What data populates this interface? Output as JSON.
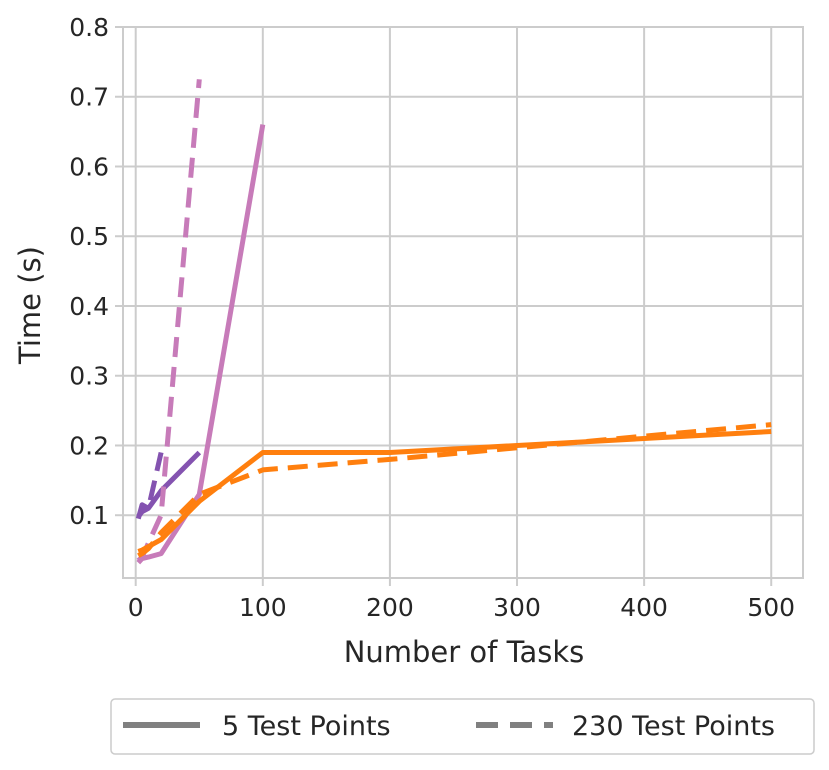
{
  "chart_data": {
    "type": "line",
    "xlabel": "Number of Tasks",
    "ylabel": "Time (s)",
    "xlim": [
      -10,
      525
    ],
    "ylim": [
      0.01,
      0.8
    ],
    "xticks": [
      0,
      100,
      200,
      300,
      400,
      500
    ],
    "xtick_labels": [
      "0",
      "100",
      "200",
      "300",
      "400",
      "500"
    ],
    "yticks": [
      0.1,
      0.2,
      0.3,
      0.4,
      0.5,
      0.6,
      0.7,
      0.8
    ],
    "ytick_labels": [
      "0.1",
      "0.2",
      "0.3",
      "0.4",
      "0.5",
      "0.6",
      "0.7",
      "0.8"
    ],
    "grid": true,
    "legend_position": "bottom (below plot)",
    "legend": [
      {
        "label": "5 Test Points",
        "style": "solid"
      },
      {
        "label": "230 Test Points",
        "style": "dashed"
      }
    ],
    "series": [
      {
        "color": "#8453b0",
        "style": "solid",
        "x": [
          2,
          5,
          10,
          20,
          50
        ],
        "y": [
          0.098,
          0.105,
          0.11,
          0.135,
          0.19
        ]
      },
      {
        "color": "#8453b0",
        "style": "dashed",
        "x": [
          2,
          5,
          10,
          20
        ],
        "y": [
          0.095,
          0.115,
          0.11,
          0.19
        ]
      },
      {
        "color": "#c77bb9",
        "style": "solid",
        "x": [
          2,
          5,
          10,
          20,
          50,
          100
        ],
        "y": [
          0.032,
          0.038,
          0.04,
          0.045,
          0.13,
          0.66
        ]
      },
      {
        "color": "#c77bb9",
        "style": "dashed",
        "x": [
          2,
          5,
          10,
          20,
          50
        ],
        "y": [
          0.035,
          0.04,
          0.06,
          0.1,
          0.725
        ]
      },
      {
        "color": "#ff7f0e",
        "style": "solid",
        "x": [
          2,
          5,
          10,
          20,
          50,
          100,
          200,
          500
        ],
        "y": [
          0.048,
          0.05,
          0.055,
          0.065,
          0.12,
          0.19,
          0.19,
          0.22
        ]
      },
      {
        "color": "#ff7f0e",
        "style": "dashed",
        "x": [
          2,
          5,
          10,
          20,
          50,
          100,
          200,
          500
        ],
        "y": [
          0.042,
          0.045,
          0.052,
          0.075,
          0.13,
          0.165,
          0.18,
          0.23
        ]
      }
    ]
  }
}
